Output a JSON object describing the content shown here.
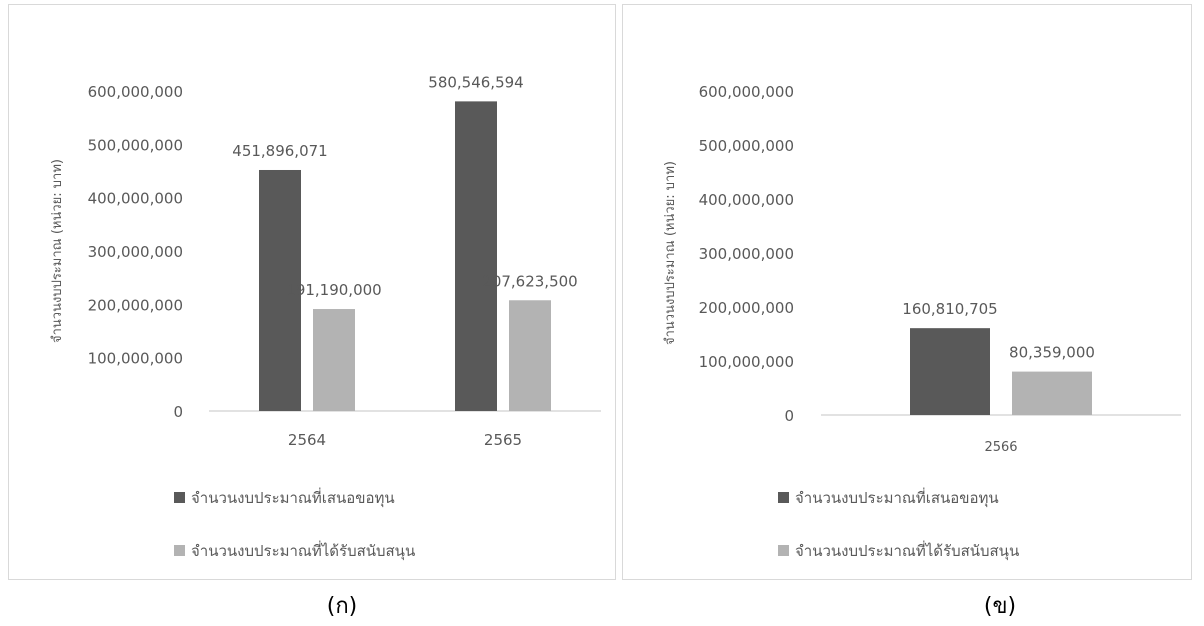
{
  "captions": {
    "a": "(ก)",
    "b": "(ข)"
  },
  "colors": {
    "proposed": "#595959",
    "approved": "#b3b3b3",
    "axis": "#d9d9d9",
    "text": "#595959"
  },
  "chart_data": [
    {
      "type": "bar",
      "ylabel": "จำนวนงบประมาณ (หน่วย: บาท)",
      "categories": [
        "2564",
        "2565"
      ],
      "ylim": [
        0,
        600000000
      ],
      "yticks": [
        "0",
        "100,000,000",
        "200,000,000",
        "300,000,000",
        "400,000,000",
        "500,000,000",
        "600,000,000"
      ],
      "legend_position": "bottom",
      "series": [
        {
          "name": "จำนวนงบประมาณที่เสนอขอทุน",
          "values": [
            451896071,
            580546594
          ],
          "labels": [
            "451,896,071",
            "580,546,594"
          ]
        },
        {
          "name": "จำนวนงบประมาณที่ได้รับสนับสนุน",
          "values": [
            191190000,
            207623500
          ],
          "labels": [
            "191,190,000",
            "207,623,500"
          ]
        }
      ]
    },
    {
      "type": "bar",
      "ylabel": "จำนวนงบประมาณ (หน่วย: บาท)",
      "categories": [
        "2566"
      ],
      "ylim": [
        0,
        600000000
      ],
      "yticks": [
        "0",
        "100,000,000",
        "200,000,000",
        "300,000,000",
        "400,000,000",
        "500,000,000",
        "600,000,000"
      ],
      "legend_position": "bottom",
      "series": [
        {
          "name": "จำนวนงบประมาณที่เสนอขอทุน",
          "values": [
            160810705
          ],
          "labels": [
            "160,810,705"
          ]
        },
        {
          "name": "จำนวนงบประมาณที่ได้รับสนับสนุน",
          "values": [
            80359000
          ],
          "labels": [
            "80,359,000"
          ]
        }
      ]
    }
  ]
}
